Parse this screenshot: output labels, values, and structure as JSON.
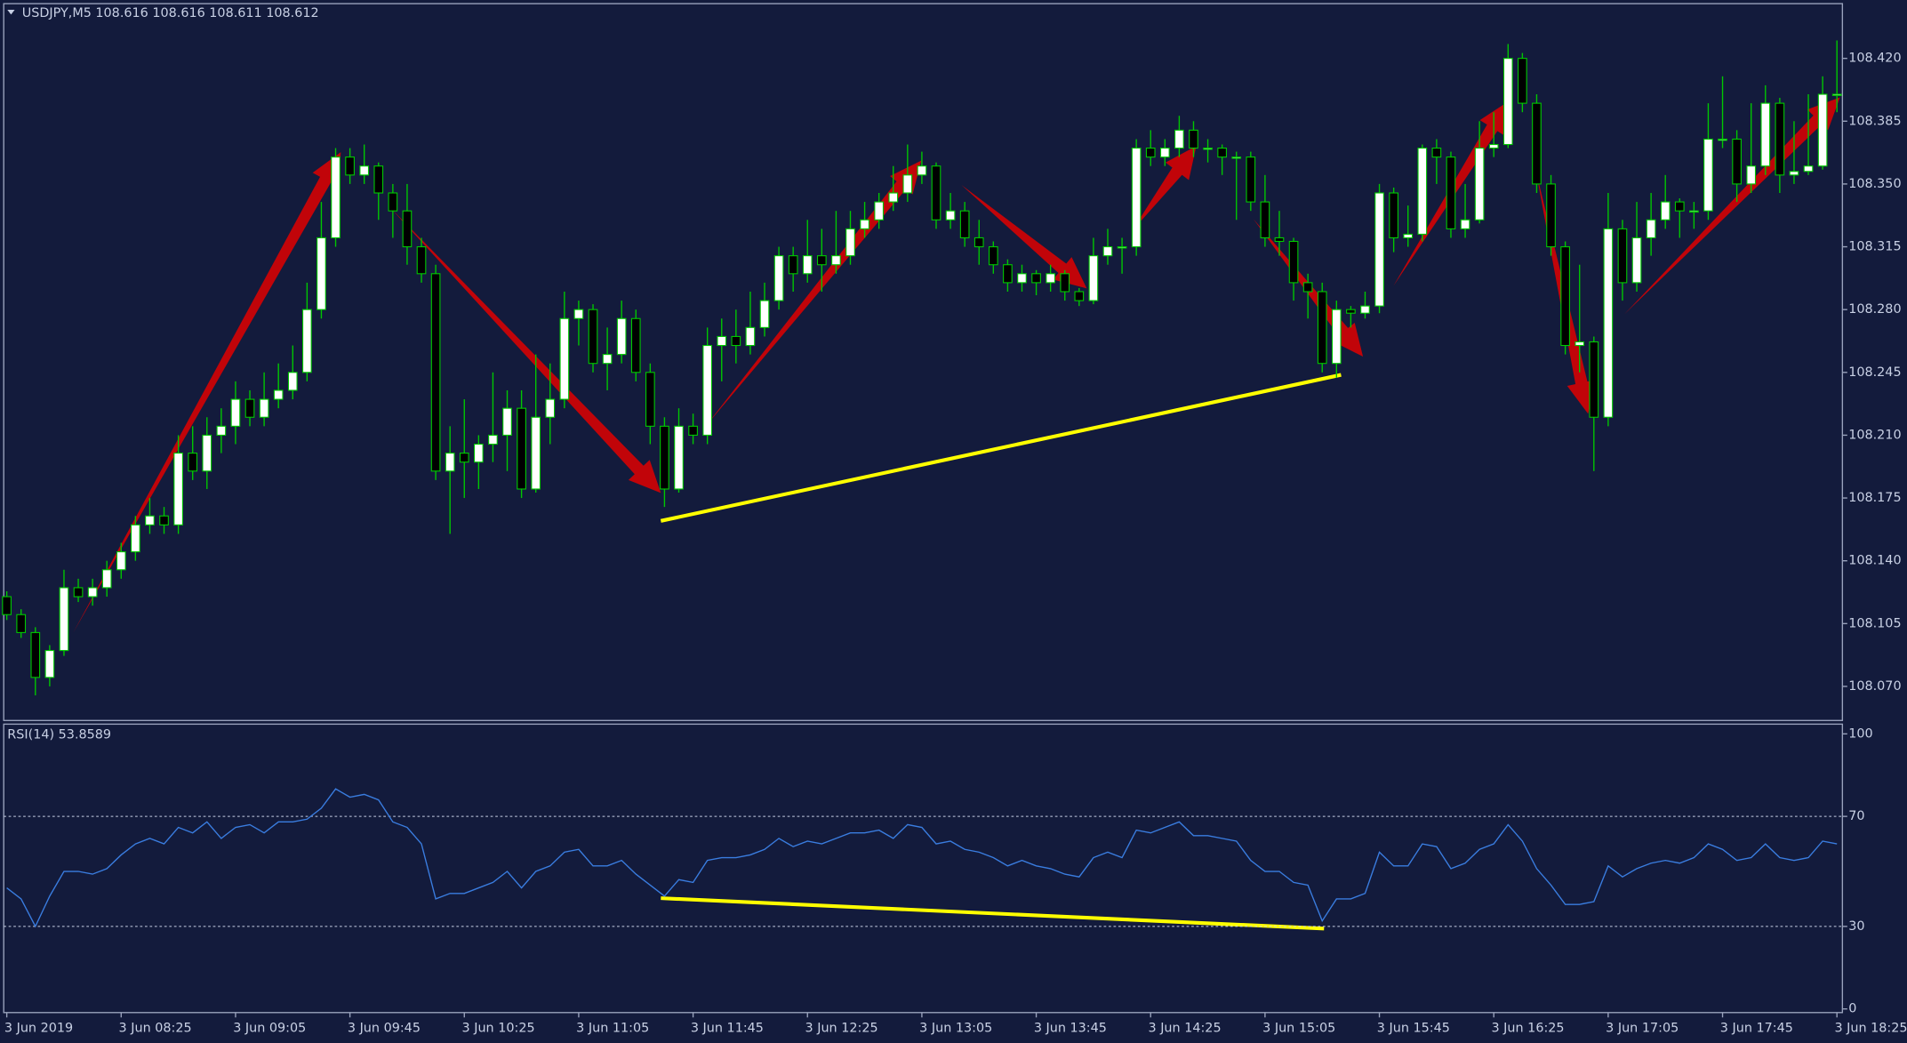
{
  "chart_data": {
    "type": "candlestick",
    "title": "USDJPY,M5  108.616 108.616 108.611 108.612",
    "ylim": [
      108.051,
      108.4505
    ],
    "yticks": [
      {
        "value": 108.07,
        "label": "108.070"
      },
      {
        "value": 108.105,
        "label": "108.105"
      },
      {
        "value": 108.14,
        "label": "108.140"
      },
      {
        "value": 108.175,
        "label": "108.175"
      },
      {
        "value": 108.21,
        "label": "108.210"
      },
      {
        "value": 108.245,
        "label": "108.245"
      },
      {
        "value": 108.28,
        "label": "108.280"
      },
      {
        "value": 108.315,
        "label": "108.315"
      },
      {
        "value": 108.35,
        "label": "108.350"
      },
      {
        "value": 108.385,
        "label": "108.385"
      },
      {
        "value": 108.42,
        "label": "108.420"
      }
    ],
    "categories": [
      "3 Jun 2019",
      null,
      null,
      null,
      null,
      null,
      null,
      null,
      "3 Jun 08:25",
      null,
      null,
      null,
      null,
      null,
      null,
      null,
      "3 Jun 09:05",
      null,
      null,
      null,
      null,
      null,
      null,
      null,
      "3 Jun 09:45",
      null,
      null,
      null,
      null,
      null,
      null,
      null,
      "3 Jun 10:25",
      null,
      null,
      null,
      null,
      null,
      null,
      null,
      "3 Jun 11:05",
      null,
      null,
      null,
      null,
      null,
      null,
      null,
      "3 Jun 11:45",
      null,
      null,
      null,
      null,
      null,
      null,
      null,
      "3 Jun 12:25",
      null,
      null,
      null,
      null,
      null,
      null,
      null,
      "3 Jun 13:05",
      null,
      null,
      null,
      null,
      null,
      null,
      null,
      "3 Jun 13:45",
      null,
      null,
      null,
      null,
      null,
      null,
      null,
      "3 Jun 14:25",
      null,
      null,
      null,
      null,
      null,
      null,
      null,
      "3 Jun 15:05",
      null,
      null,
      null,
      null,
      null,
      null,
      null,
      "3 Jun 15:45",
      null,
      null,
      null,
      null,
      null,
      null,
      null,
      "3 Jun 16:25",
      null,
      null,
      null,
      null,
      null,
      null,
      null,
      "3 Jun 17:05",
      null,
      null,
      null,
      null,
      null,
      null,
      null,
      "3 Jun 17:45",
      null,
      null,
      null,
      null,
      null,
      null,
      null,
      "3 Jun 18:25"
    ],
    "candles": [
      [
        108.12,
        108.123,
        108.107,
        108.11
      ],
      [
        108.11,
        108.113,
        108.097,
        108.1
      ],
      [
        108.1,
        108.103,
        108.065,
        108.075
      ],
      [
        108.075,
        108.093,
        108.07,
        108.09
      ],
      [
        108.09,
        108.135,
        108.087,
        108.125
      ],
      [
        108.125,
        108.13,
        108.117,
        108.12
      ],
      [
        108.12,
        108.13,
        108.115,
        108.125
      ],
      [
        108.125,
        108.14,
        108.12,
        108.135
      ],
      [
        108.135,
        108.15,
        108.13,
        108.145
      ],
      [
        108.145,
        108.165,
        108.14,
        108.16
      ],
      [
        108.16,
        108.175,
        108.155,
        108.165
      ],
      [
        108.165,
        108.17,
        108.155,
        108.16
      ],
      [
        108.16,
        108.21,
        108.155,
        108.2
      ],
      [
        108.2,
        108.215,
        108.185,
        108.19
      ],
      [
        108.19,
        108.22,
        108.18,
        108.21
      ],
      [
        108.21,
        108.225,
        108.2,
        108.215
      ],
      [
        108.215,
        108.24,
        108.205,
        108.23
      ],
      [
        108.23,
        108.235,
        108.215,
        108.22
      ],
      [
        108.22,
        108.245,
        108.215,
        108.23
      ],
      [
        108.23,
        108.25,
        108.225,
        108.235
      ],
      [
        108.235,
        108.26,
        108.23,
        108.245
      ],
      [
        108.245,
        108.295,
        108.24,
        108.28
      ],
      [
        108.28,
        108.34,
        108.275,
        108.32
      ],
      [
        108.32,
        108.37,
        108.315,
        108.365
      ],
      [
        108.365,
        108.37,
        108.35,
        108.355
      ],
      [
        108.355,
        108.372,
        108.35,
        108.36
      ],
      [
        108.36,
        108.362,
        108.33,
        108.345
      ],
      [
        108.345,
        108.35,
        108.32,
        108.335
      ],
      [
        108.335,
        108.35,
        108.305,
        108.315
      ],
      [
        108.315,
        108.32,
        108.295,
        108.3
      ],
      [
        108.3,
        108.305,
        108.185,
        108.19
      ],
      [
        108.19,
        108.215,
        108.155,
        108.2
      ],
      [
        108.2,
        108.23,
        108.175,
        108.195
      ],
      [
        108.195,
        108.21,
        108.18,
        108.205
      ],
      [
        108.205,
        108.245,
        108.195,
        108.21
      ],
      [
        108.21,
        108.235,
        108.19,
        108.225
      ],
      [
        108.225,
        108.235,
        108.175,
        108.18
      ],
      [
        108.18,
        108.255,
        108.178,
        108.22
      ],
      [
        108.22,
        108.25,
        108.205,
        108.23
      ],
      [
        108.23,
        108.29,
        108.225,
        108.275
      ],
      [
        108.275,
        108.285,
        108.26,
        108.28
      ],
      [
        108.28,
        108.283,
        108.245,
        108.25
      ],
      [
        108.25,
        108.27,
        108.235,
        108.255
      ],
      [
        108.255,
        108.285,
        108.25,
        108.275
      ],
      [
        108.275,
        108.28,
        108.24,
        108.245
      ],
      [
        108.245,
        108.25,
        108.205,
        108.215
      ],
      [
        108.215,
        108.22,
        108.17,
        108.18
      ],
      [
        108.18,
        108.225,
        108.178,
        108.215
      ],
      [
        108.215,
        108.222,
        108.205,
        108.21
      ],
      [
        108.21,
        108.27,
        108.205,
        108.26
      ],
      [
        108.26,
        108.275,
        108.24,
        108.265
      ],
      [
        108.265,
        108.28,
        108.25,
        108.26
      ],
      [
        108.26,
        108.29,
        108.255,
        108.27
      ],
      [
        108.27,
        108.295,
        108.265,
        108.285
      ],
      [
        108.285,
        108.315,
        108.28,
        108.31
      ],
      [
        108.31,
        108.315,
        108.29,
        108.3
      ],
      [
        108.3,
        108.33,
        108.295,
        108.31
      ],
      [
        108.31,
        108.325,
        108.29,
        108.305
      ],
      [
        108.305,
        108.335,
        108.3,
        108.31
      ],
      [
        108.31,
        108.335,
        108.305,
        108.325
      ],
      [
        108.325,
        108.34,
        108.32,
        108.33
      ],
      [
        108.33,
        108.345,
        108.325,
        108.34
      ],
      [
        108.34,
        108.36,
        108.335,
        108.345
      ],
      [
        108.345,
        108.372,
        108.34,
        108.355
      ],
      [
        108.355,
        108.368,
        108.35,
        108.36
      ],
      [
        108.36,
        108.362,
        108.325,
        108.33
      ],
      [
        108.33,
        108.345,
        108.325,
        108.335
      ],
      [
        108.335,
        108.34,
        108.315,
        108.32
      ],
      [
        108.32,
        108.33,
        108.305,
        108.315
      ],
      [
        108.315,
        108.318,
        108.3,
        108.305
      ],
      [
        108.305,
        108.308,
        108.29,
        108.295
      ],
      [
        108.295,
        108.305,
        108.29,
        108.3
      ],
      [
        108.3,
        108.302,
        108.288,
        108.295
      ],
      [
        108.295,
        108.305,
        108.29,
        108.3
      ],
      [
        108.3,
        108.302,
        108.285,
        108.29
      ],
      [
        108.29,
        108.292,
        108.282,
        108.285
      ],
      [
        108.285,
        108.32,
        108.283,
        108.31
      ],
      [
        108.31,
        108.325,
        108.305,
        108.315
      ],
      [
        108.315,
        108.32,
        108.3,
        108.315
      ],
      [
        108.315,
        108.375,
        108.31,
        108.37
      ],
      [
        108.37,
        108.38,
        108.36,
        108.365
      ],
      [
        108.365,
        108.375,
        108.36,
        108.37
      ],
      [
        108.37,
        108.388,
        108.365,
        108.38
      ],
      [
        108.38,
        108.385,
        108.365,
        108.37
      ],
      [
        108.37,
        108.375,
        108.362,
        108.37
      ],
      [
        108.37,
        108.372,
        108.355,
        108.365
      ],
      [
        108.365,
        108.368,
        108.33,
        108.365
      ],
      [
        108.365,
        108.368,
        108.335,
        108.34
      ],
      [
        108.34,
        108.355,
        108.315,
        108.32
      ],
      [
        108.32,
        108.335,
        108.31,
        108.318
      ],
      [
        108.318,
        108.32,
        108.285,
        108.295
      ],
      [
        108.295,
        108.3,
        108.275,
        108.29
      ],
      [
        108.29,
        108.295,
        108.245,
        108.25
      ],
      [
        108.25,
        108.285,
        108.242,
        108.28
      ],
      [
        108.28,
        108.282,
        108.27,
        108.278
      ],
      [
        108.278,
        108.29,
        108.275,
        108.282
      ],
      [
        108.282,
        108.35,
        108.278,
        108.345
      ],
      [
        108.345,
        108.348,
        108.312,
        108.32
      ],
      [
        108.32,
        108.338,
        108.315,
        108.322
      ],
      [
        108.322,
        108.372,
        108.318,
        108.37
      ],
      [
        108.37,
        108.375,
        108.35,
        108.365
      ],
      [
        108.365,
        108.368,
        108.32,
        108.325
      ],
      [
        108.325,
        108.35,
        108.32,
        108.33
      ],
      [
        108.33,
        108.385,
        108.328,
        108.37
      ],
      [
        108.37,
        108.39,
        108.365,
        108.372
      ],
      [
        108.372,
        108.428,
        108.37,
        108.42
      ],
      [
        108.42,
        108.423,
        108.39,
        108.395
      ],
      [
        108.395,
        108.4,
        108.345,
        108.35
      ],
      [
        108.35,
        108.355,
        108.31,
        108.315
      ],
      [
        108.315,
        108.318,
        108.255,
        108.26
      ],
      [
        108.26,
        108.305,
        108.245,
        108.262
      ],
      [
        108.262,
        108.265,
        108.19,
        108.22
      ],
      [
        108.22,
        108.345,
        108.215,
        108.325
      ],
      [
        108.325,
        108.33,
        108.285,
        108.295
      ],
      [
        108.295,
        108.34,
        108.29,
        108.32
      ],
      [
        108.32,
        108.345,
        108.31,
        108.33
      ],
      [
        108.33,
        108.355,
        108.325,
        108.34
      ],
      [
        108.34,
        108.342,
        108.32,
        108.335
      ],
      [
        108.335,
        108.34,
        108.325,
        108.335
      ],
      [
        108.335,
        108.395,
        108.33,
        108.375
      ],
      [
        108.375,
        108.41,
        108.37,
        108.375
      ],
      [
        108.375,
        108.38,
        108.34,
        108.35
      ],
      [
        108.35,
        108.395,
        108.345,
        108.36
      ],
      [
        108.36,
        108.405,
        108.355,
        108.395
      ],
      [
        108.395,
        108.398,
        108.345,
        108.355
      ],
      [
        108.355,
        108.385,
        108.35,
        108.357
      ],
      [
        108.357,
        108.4,
        108.355,
        108.36
      ],
      [
        108.36,
        108.41,
        108.358,
        108.4
      ],
      [
        108.4,
        108.43,
        108.39,
        108.4
      ]
    ],
    "bull_color": "#ffffff",
    "bear_color": "#000000",
    "wick_color": "#00c800",
    "indicator": {
      "type": "line",
      "title": "RSI(14) 53.8589",
      "color": "#3a7de0",
      "ylim": [
        0,
        100
      ],
      "yticks": [
        0,
        30,
        70,
        100
      ],
      "levels": [
        30,
        70
      ],
      "values": [
        44,
        40,
        30,
        41,
        50,
        50,
        49,
        51,
        56,
        60,
        62,
        60,
        66,
        64,
        68,
        62,
        66,
        67,
        64,
        68,
        68,
        69,
        73,
        80,
        77,
        78,
        76,
        68,
        66,
        60,
        40,
        42,
        42,
        44,
        46,
        50,
        44,
        50,
        52,
        57,
        58,
        52,
        52,
        54,
        49,
        45,
        41,
        47,
        46,
        54,
        55,
        55,
        56,
        58,
        62,
        59,
        61,
        60,
        62,
        64,
        64,
        65,
        62,
        67,
        66,
        60,
        61,
        58,
        57,
        55,
        52,
        54,
        52,
        51,
        49,
        48,
        55,
        57,
        55,
        65,
        64,
        66,
        68,
        63,
        63,
        62,
        61,
        54,
        50,
        50,
        46,
        45,
        32,
        40,
        40,
        42,
        57,
        52,
        52,
        60,
        59,
        51,
        53,
        58,
        60,
        67,
        61,
        51,
        45,
        38,
        38,
        39,
        52,
        48,
        51,
        53,
        54,
        53,
        55,
        60,
        58,
        54,
        55,
        60,
        55,
        54,
        55,
        61,
        60
      ]
    }
  }
}
